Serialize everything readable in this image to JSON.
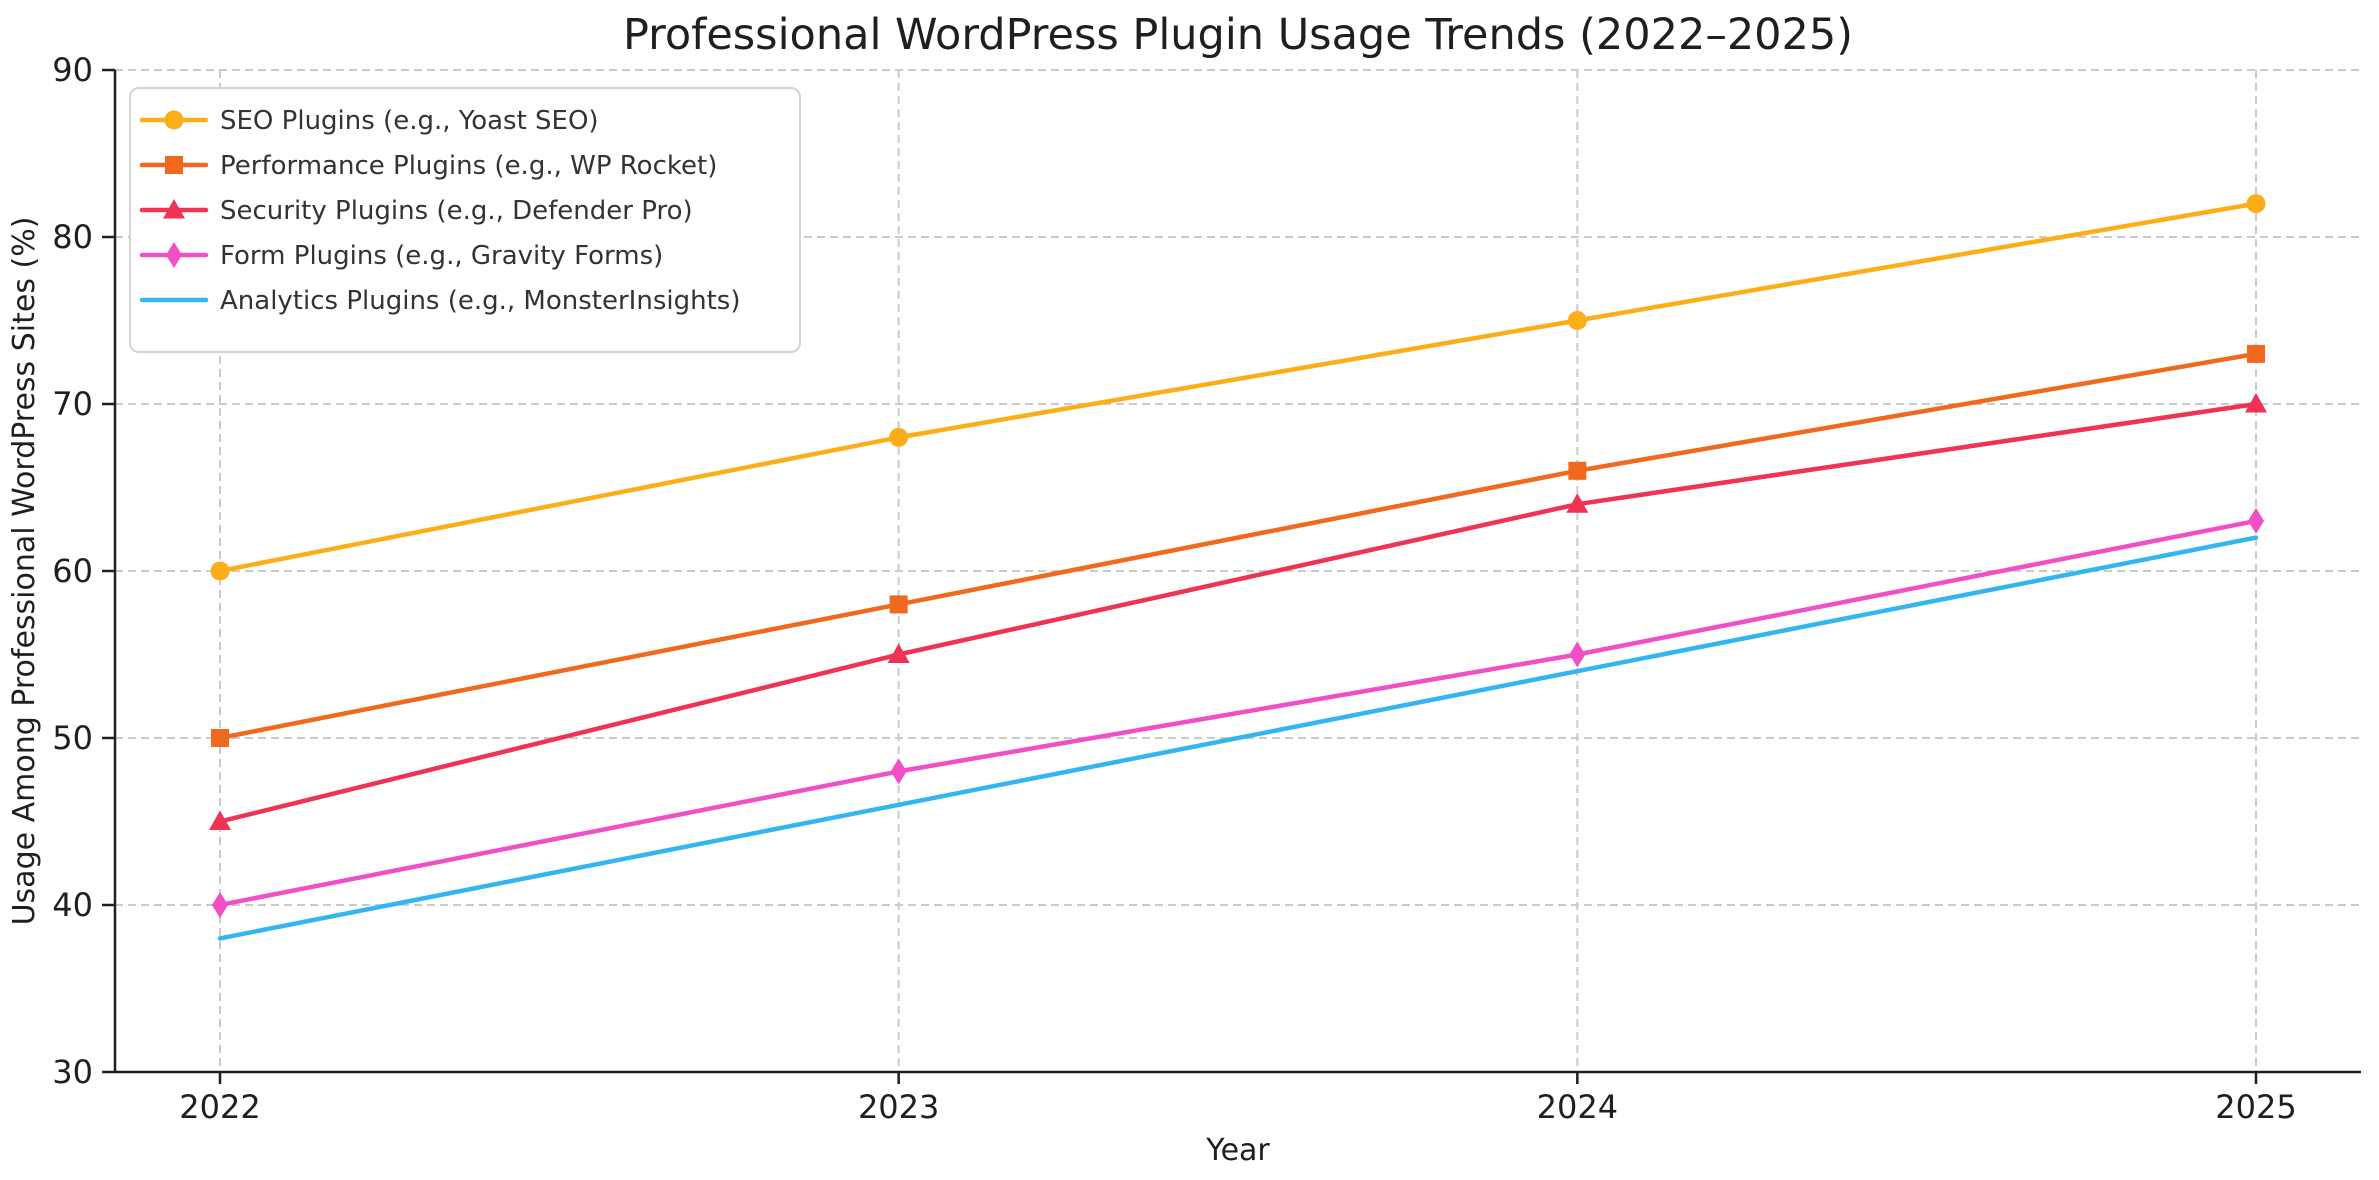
{
  "chart_data": {
    "type": "line",
    "title": "Professional WordPress Plugin Usage Trends (2022–2025)",
    "xlabel": "Year",
    "ylabel": "Usage Among Professional WordPress Sites (%)",
    "x": [
      2022,
      2023,
      2024,
      2025
    ],
    "x_tick_labels": [
      "2022",
      "2023",
      "2024",
      "2025"
    ],
    "y_ticks": [
      30,
      40,
      50,
      60,
      70,
      80,
      90
    ],
    "ylim": [
      30,
      90
    ],
    "grid": {
      "visible": true,
      "style": "dashed",
      "color": "#cbcbcb"
    },
    "axis_color": "#1f1f1f",
    "text_color": "#1f1f1f",
    "legend": {
      "position": "upper-left",
      "background": "#ffffff",
      "border_color": "#d4d4d4",
      "text_color": "#333333"
    },
    "series": [
      {
        "name": "SEO Plugins (e.g., Yoast SEO)",
        "marker": "circle",
        "color": "#FBAE17",
        "values": [
          60,
          68,
          75,
          82
        ]
      },
      {
        "name": "Performance Plugins (e.g., WP Rocket)",
        "marker": "square",
        "color": "#F0691E",
        "values": [
          50,
          58,
          66,
          73
        ]
      },
      {
        "name": "Security Plugins (e.g., Defender Pro)",
        "marker": "triangle-up",
        "color": "#EE3355",
        "values": [
          45,
          55,
          64,
          70
        ]
      },
      {
        "name": "Form Plugins (e.g., Gravity Forms)",
        "marker": "thin-diamond",
        "color": "#F04FC5",
        "values": [
          40,
          48,
          55,
          63
        ]
      },
      {
        "name": "Analytics Plugins (e.g., MonsterInsights)",
        "marker": "none",
        "color": "#33B5F0",
        "values": [
          38,
          46,
          54,
          62
        ]
      }
    ]
  }
}
